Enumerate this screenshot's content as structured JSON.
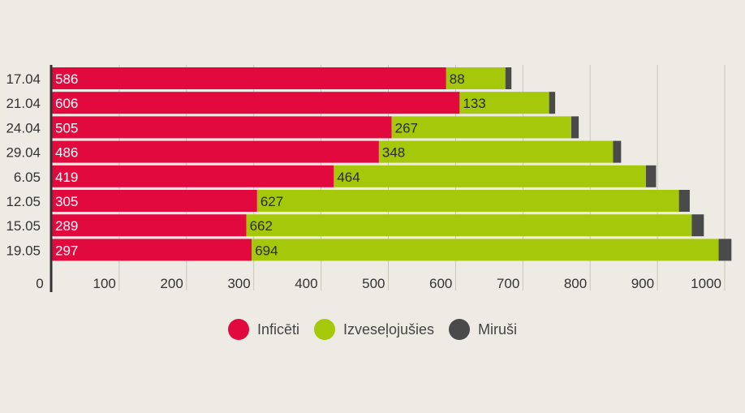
{
  "chart_data": {
    "type": "bar",
    "orientation": "horizontal",
    "stacked": true,
    "categories": [
      "17.04",
      "21.04",
      "24.04",
      "29.04",
      "6.05",
      "12.05",
      "15.05",
      "19.05"
    ],
    "series": [
      {
        "name": "Inficēti",
        "color": "#e2093f",
        "values": [
          586,
          606,
          505,
          486,
          419,
          305,
          289,
          297
        ]
      },
      {
        "name": "Izveseļojušies",
        "color": "#a6c80b",
        "values": [
          88,
          133,
          267,
          348,
          464,
          627,
          662,
          694
        ]
      },
      {
        "name": "Miruši",
        "color": "#4a4a4a",
        "values": [
          9,
          9,
          11,
          12,
          15,
          16,
          18,
          19
        ]
      }
    ],
    "x_ticks": [
      0,
      100,
      200,
      300,
      400,
      500,
      600,
      700,
      800,
      900,
      1000
    ],
    "xlim": [
      0,
      1030
    ],
    "grid": true,
    "legend_position": "bottom"
  }
}
